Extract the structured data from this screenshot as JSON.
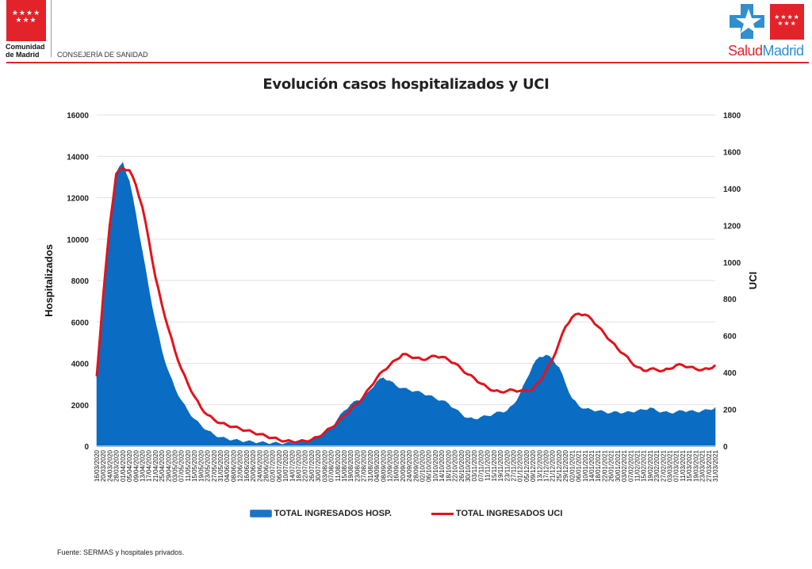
{
  "header": {
    "org_name_line1": "Comunidad",
    "org_name_line2": "de Madrid",
    "department": "CONSEJERÍA DE SANIDAD",
    "logo_stars": "★★★★\n★★★",
    "brand_part1": "Salud",
    "brand_part2": "Madrid"
  },
  "colors": {
    "brand_red": "#e3232a",
    "hosp_area": "#0a6cc2",
    "uci_line": "#e3131b",
    "brand_blue": "#2f8fcf"
  },
  "footer": {
    "source": "Fuente: SERMAS y hospitales privados."
  },
  "chart_data": {
    "type": "area",
    "title": "Evolución casos hospitalizados y UCI",
    "xlabel": "",
    "ylabel": "Hospitalizados",
    "y2label": "UCI",
    "ylim": [
      0,
      16000
    ],
    "y2lim": [
      0,
      1800
    ],
    "yticks": [
      "0",
      "2000",
      "4000",
      "6000",
      "8000",
      "10000",
      "12000",
      "14000",
      "16000"
    ],
    "y2ticks": [
      "0",
      "200",
      "400",
      "600",
      "800",
      "1000",
      "1200",
      "1400",
      "1600",
      "1800"
    ],
    "grid": true,
    "legend_position": "bottom",
    "x": [
      "16/03/2020",
      "20/03/2020",
      "24/03/2020",
      "28/03/2020",
      "01/04/2020",
      "05/04/2020",
      "09/04/2020",
      "13/04/2020",
      "17/04/2020",
      "21/04/2020",
      "25/04/2020",
      "29/04/2020",
      "03/05/2020",
      "07/05/2020",
      "11/05/2020",
      "15/05/2020",
      "19/05/2020",
      "23/05/2020",
      "27/05/2020",
      "31/05/2020",
      "04/06/2020",
      "08/06/2020",
      "12/06/2020",
      "16/06/2020",
      "20/06/2020",
      "24/06/2020",
      "28/06/2020",
      "02/07/2020",
      "06/07/2020",
      "10/07/2020",
      "14/07/2020",
      "18/07/2020",
      "22/07/2020",
      "26/07/2020",
      "30/07/2020",
      "03/08/2020",
      "07/08/2020",
      "11/08/2020",
      "15/08/2020",
      "19/08/2020",
      "23/08/2020",
      "27/08/2020",
      "31/08/2020",
      "04/09/2020",
      "08/09/2020",
      "12/09/2020",
      "16/09/2020",
      "20/09/2020",
      "24/09/2020",
      "28/09/2020",
      "02/10/2020",
      "06/10/2020",
      "10/10/2020",
      "14/10/2020",
      "18/10/2020",
      "22/10/2020",
      "26/10/2020",
      "30/10/2020",
      "03/11/2020",
      "07/11/2020",
      "11/11/2020",
      "15/11/2020",
      "19/11/2020",
      "23/11/2020",
      "27/11/2020",
      "01/12/2020",
      "05/12/2020",
      "09/12/2020",
      "13/12/2020",
      "17/12/2020",
      "21/12/2020",
      "25/12/2020",
      "29/12/2020",
      "02/01/2021",
      "06/01/2021",
      "10/01/2021",
      "14/01/2021",
      "18/01/2021",
      "22/01/2021",
      "26/01/2021",
      "30/01/2021",
      "03/02/2021",
      "07/02/2021",
      "11/02/2021",
      "15/02/2021",
      "19/02/2021",
      "23/02/2021",
      "27/02/2021",
      "03/03/2021",
      "07/03/2021",
      "11/03/2021",
      "15/03/2021",
      "19/03/2021",
      "23/03/2021",
      "27/03/2021",
      "31/03/2021"
    ],
    "series": [
      {
        "name": "TOTAL INGRESADOS HOSP.",
        "axis": "left",
        "kind": "area",
        "values": [
          3300,
          6500,
          10500,
          13200,
          13700,
          12800,
          11200,
          9400,
          7600,
          6000,
          4600,
          3600,
          2800,
          2200,
          1700,
          1300,
          1000,
          750,
          550,
          420,
          350,
          300,
          260,
          230,
          200,
          180,
          160,
          150,
          140,
          140,
          150,
          170,
          200,
          260,
          400,
          600,
          900,
          1300,
          1700,
          2000,
          2200,
          2300,
          2700,
          3100,
          3300,
          3150,
          2900,
          2800,
          2700,
          2650,
          2550,
          2450,
          2300,
          2200,
          2050,
          1800,
          1550,
          1350,
          1300,
          1400,
          1450,
          1550,
          1650,
          1700,
          2000,
          2500,
          3200,
          3900,
          4300,
          4400,
          4200,
          3800,
          3000,
          2300,
          1950,
          1800,
          1750,
          1700,
          1650,
          1600,
          1650,
          1600,
          1650,
          1700,
          1750,
          1850,
          1700,
          1650,
          1600,
          1650,
          1700,
          1700,
          1650,
          1700,
          1750,
          1850
        ]
      },
      {
        "name": "TOTAL INGRESADOS UCI",
        "axis": "right",
        "kind": "line",
        "values": [
          380,
          820,
          1200,
          1480,
          1510,
          1500,
          1420,
          1300,
          1120,
          920,
          770,
          640,
          520,
          420,
          340,
          270,
          210,
          170,
          145,
          125,
          115,
          105,
          95,
          85,
          75,
          65,
          55,
          45,
          35,
          28,
          25,
          25,
          28,
          35,
          50,
          75,
          100,
          130,
          165,
          200,
          230,
          270,
          320,
          370,
          410,
          440,
          470,
          500,
          490,
          480,
          470,
          480,
          490,
          485,
          470,
          450,
          420,
          390,
          370,
          340,
          320,
          300,
          295,
          300,
          305,
          300,
          300,
          310,
          350,
          410,
          470,
          560,
          650,
          700,
          720,
          715,
          690,
          650,
          610,
          570,
          530,
          500,
          460,
          430,
          410,
          420,
          415,
          410,
          420,
          440,
          440,
          430,
          420,
          415,
          420,
          440
        ]
      }
    ]
  }
}
